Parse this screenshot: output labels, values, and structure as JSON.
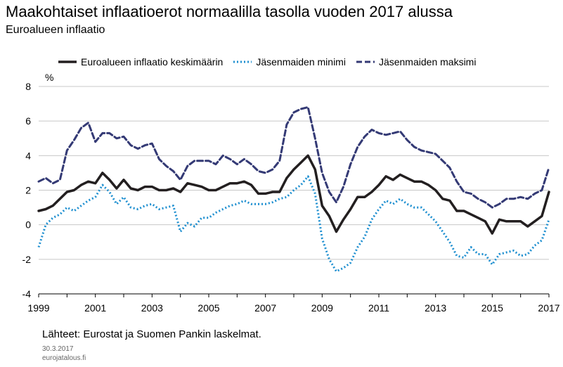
{
  "title": "Maakohtaiset inflaatioerot normaalilla tasolla vuoden 2017 alussa",
  "subtitle": "Euroalueen  inflaatio",
  "unit": "%",
  "source": "Lähteet: Eurostat ja Suomen Pankin laskelmat.",
  "date": "30.3.2017",
  "site": "eurojatalous.fi",
  "chart_data": {
    "type": "line",
    "xlim": [
      1999,
      2017
    ],
    "ylim": [
      -4,
      8
    ],
    "x_ticks": [
      "1999",
      "2001",
      "2003",
      "2005",
      "2007",
      "2009",
      "2011",
      "2013",
      "2015",
      "2017"
    ],
    "y_ticks": [
      "-4",
      "-2",
      "0",
      "2",
      "4",
      "6",
      "8"
    ],
    "grid": "horizontal",
    "legend": "top",
    "x": [
      1999.0,
      1999.25,
      1999.5,
      1999.75,
      2000.0,
      2000.25,
      2000.5,
      2000.75,
      2001.0,
      2001.25,
      2001.5,
      2001.75,
      2002.0,
      2002.25,
      2002.5,
      2002.75,
      2003.0,
      2003.25,
      2003.5,
      2003.75,
      2004.0,
      2004.25,
      2004.5,
      2004.75,
      2005.0,
      2005.25,
      2005.5,
      2005.75,
      2006.0,
      2006.25,
      2006.5,
      2006.75,
      2007.0,
      2007.25,
      2007.5,
      2007.75,
      2008.0,
      2008.25,
      2008.5,
      2008.75,
      2009.0,
      2009.25,
      2009.5,
      2009.75,
      2010.0,
      2010.25,
      2010.5,
      2010.75,
      2011.0,
      2011.25,
      2011.5,
      2011.75,
      2012.0,
      2012.25,
      2012.5,
      2012.75,
      2013.0,
      2013.25,
      2013.5,
      2013.75,
      2014.0,
      2014.25,
      2014.5,
      2014.75,
      2015.0,
      2015.25,
      2015.5,
      2015.75,
      2016.0,
      2016.25,
      2016.5,
      2016.75,
      2017.0
    ],
    "series": [
      {
        "name": "Euroalueen inflaatio keskimäärin",
        "style": "solid",
        "color": "#231f20",
        "values": [
          0.8,
          0.9,
          1.1,
          1.5,
          1.9,
          2.0,
          2.3,
          2.5,
          2.4,
          3.0,
          2.6,
          2.1,
          2.6,
          2.1,
          2.0,
          2.2,
          2.2,
          2.0,
          2.0,
          2.1,
          1.9,
          2.4,
          2.3,
          2.2,
          2.0,
          2.0,
          2.2,
          2.4,
          2.4,
          2.5,
          2.3,
          1.8,
          1.8,
          1.9,
          1.9,
          2.7,
          3.2,
          3.6,
          4.0,
          3.2,
          1.1,
          0.5,
          -0.4,
          0.3,
          0.9,
          1.6,
          1.6,
          1.9,
          2.3,
          2.8,
          2.6,
          2.9,
          2.7,
          2.5,
          2.5,
          2.3,
          2.0,
          1.5,
          1.4,
          0.8,
          0.8,
          0.6,
          0.4,
          0.2,
          -0.5,
          0.3,
          0.2,
          0.2,
          0.2,
          -0.1,
          0.2,
          0.5,
          1.9
        ]
      },
      {
        "name": "Jäsenmaiden minimi",
        "style": "dotted",
        "color": "#1e8fd0",
        "values": [
          -1.3,
          0.0,
          0.4,
          0.6,
          1.0,
          0.8,
          1.1,
          1.4,
          1.6,
          2.3,
          1.9,
          1.2,
          1.6,
          1.0,
          0.9,
          1.1,
          1.2,
          0.9,
          1.0,
          1.1,
          -0.4,
          0.1,
          -0.1,
          0.4,
          0.4,
          0.7,
          0.9,
          1.1,
          1.2,
          1.4,
          1.2,
          1.2,
          1.2,
          1.3,
          1.5,
          1.6,
          2.0,
          2.3,
          2.8,
          1.8,
          -0.8,
          -2.0,
          -2.7,
          -2.5,
          -2.2,
          -1.3,
          -0.7,
          0.3,
          0.9,
          1.4,
          1.2,
          1.5,
          1.2,
          1.0,
          1.0,
          0.6,
          0.2,
          -0.4,
          -1.0,
          -1.8,
          -1.9,
          -1.3,
          -1.7,
          -1.7,
          -2.3,
          -1.7,
          -1.6,
          -1.5,
          -1.8,
          -1.7,
          -1.2,
          -0.9,
          0.3
        ]
      },
      {
        "name": "Jäsenmaiden maksimi",
        "style": "dashed",
        "color": "#343a75",
        "values": [
          2.5,
          2.7,
          2.4,
          2.6,
          4.3,
          4.9,
          5.6,
          5.9,
          4.8,
          5.3,
          5.3,
          5.0,
          5.1,
          4.6,
          4.4,
          4.6,
          4.7,
          3.8,
          3.4,
          3.1,
          2.6,
          3.4,
          3.7,
          3.7,
          3.7,
          3.5,
          4.0,
          3.8,
          3.5,
          3.8,
          3.5,
          3.1,
          3.0,
          3.2,
          3.7,
          5.8,
          6.5,
          6.7,
          6.8,
          5.0,
          3.0,
          1.9,
          1.3,
          2.2,
          3.5,
          4.5,
          5.1,
          5.5,
          5.3,
          5.2,
          5.3,
          5.4,
          4.9,
          4.5,
          4.3,
          4.2,
          4.1,
          3.7,
          3.3,
          2.5,
          1.9,
          1.8,
          1.5,
          1.3,
          1.0,
          1.2,
          1.5,
          1.5,
          1.6,
          1.5,
          1.8,
          2.0,
          3.3
        ]
      }
    ]
  }
}
